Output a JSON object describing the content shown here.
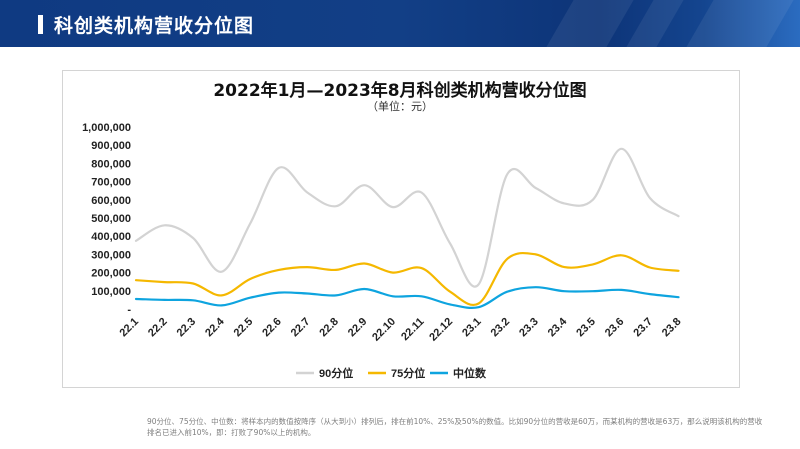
{
  "header": {
    "title": "科创类机构营收分位图"
  },
  "chart_data": {
    "type": "line",
    "title": "2022年1月—2023年8月科创类机构营收分位图",
    "subtitle": "（单位：元）",
    "categories": [
      "22.1",
      "22.2",
      "22.3",
      "22.4",
      "22.5",
      "22.6",
      "22.7",
      "22.8",
      "22.9",
      "22.10",
      "22.11",
      "22.12",
      "23.1",
      "23.2",
      "23.3",
      "23.4",
      "23.5",
      "23.6",
      "23.7",
      "23.8"
    ],
    "ylim": [
      0,
      1000000
    ],
    "yticks": [
      0,
      100000,
      200000,
      300000,
      400000,
      500000,
      600000,
      700000,
      800000,
      900000,
      1000000
    ],
    "ytick_labels": [
      "-",
      "100,000",
      "200,000",
      "300,000",
      "400,000",
      "500,000",
      "600,000",
      "700,000",
      "800,000",
      "900,000",
      "1,000,000"
    ],
    "grid": false,
    "legend_position": "bottom",
    "series": [
      {
        "name": "90分位",
        "color": "#d3d3d3",
        "values": [
          375000,
          460000,
          390000,
          205000,
          470000,
          775000,
          640000,
          565000,
          680000,
          560000,
          640000,
          360000,
          135000,
          740000,
          665000,
          580000,
          600000,
          880000,
          610000,
          510000
        ]
      },
      {
        "name": "75分位",
        "color": "#f5b800",
        "values": [
          158000,
          148000,
          140000,
          75000,
          165000,
          215000,
          230000,
          215000,
          250000,
          200000,
          225000,
          95000,
          30000,
          275000,
          300000,
          230000,
          245000,
          295000,
          228000,
          210000
        ]
      },
      {
        "name": "中位数",
        "color": "#0ea4df",
        "values": [
          55000,
          50000,
          48000,
          20000,
          62000,
          90000,
          85000,
          75000,
          110000,
          70000,
          70000,
          25000,
          10000,
          95000,
          120000,
          98000,
          98000,
          105000,
          82000,
          65000
        ]
      }
    ]
  },
  "footnote": "90分位、75分位、中位数：将样本内的数值按降序（从大到小）排列后，排在前10%、25%及50%的数值。比如90分位的营收是60万，而某机构的营收是63万，那么说明该机构的营收排名已进入前10%，即：打败了90%以上的机构。"
}
